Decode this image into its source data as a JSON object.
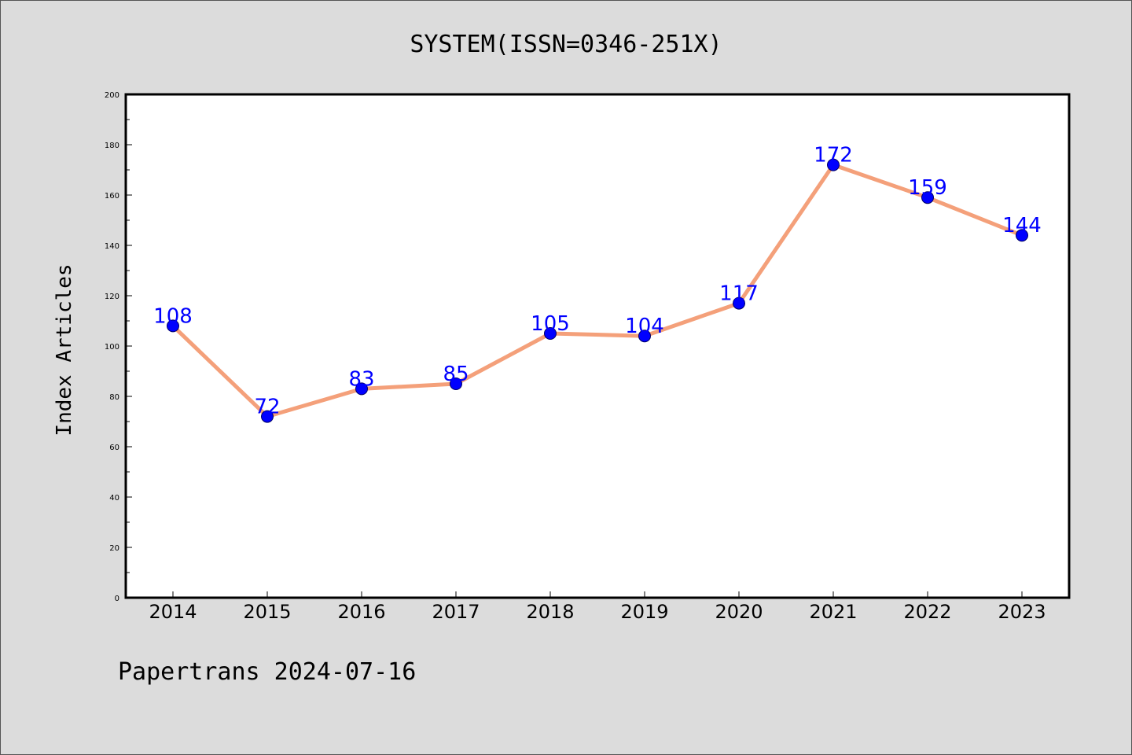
{
  "chart_data": {
    "type": "line",
    "title": "SYSTEM(ISSN=0346-251X)",
    "ylabel": "Index Articles",
    "xlabel": "",
    "categories": [
      "2014",
      "2015",
      "2016",
      "2017",
      "2018",
      "2019",
      "2020",
      "2021",
      "2022",
      "2023"
    ],
    "series": [
      {
        "values": [
          108,
          72,
          83,
          85,
          105,
          104,
          117,
          172,
          159,
          144
        ]
      }
    ],
    "ylim": [
      0,
      200
    ],
    "yticks": [
      0,
      20,
      40,
      60,
      80,
      100,
      120,
      140,
      160,
      180,
      200
    ],
    "data_labels": true,
    "grid": false,
    "line_color": "#f4a07a",
    "marker_color": "#0000ff",
    "label_color": "#0000ff"
  },
  "footer": "Papertrans 2024-07-16"
}
